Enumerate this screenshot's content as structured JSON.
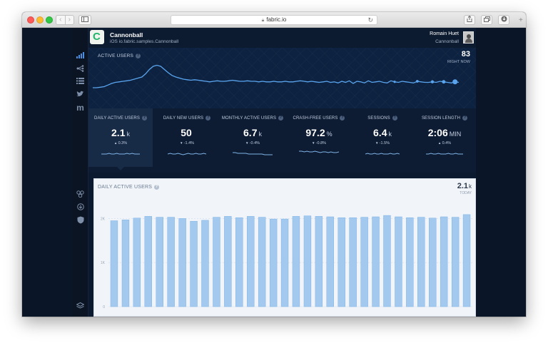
{
  "browser": {
    "url": "fabric.io",
    "nav_back": "‹",
    "nav_forward": "›"
  },
  "app": {
    "name": "Cannonball",
    "platform": "iOS",
    "bundle": "io.fabric.samples.Cannonball",
    "logo_letter": "C",
    "user_name": "Romain Huet",
    "user_org": "Cannonball"
  },
  "active_users": {
    "label": "ACTIVE USERS",
    "count": "83",
    "sublabel": "RIGHT NOW",
    "line_color": "#5aa4ee",
    "series": [
      40,
      40,
      41,
      42,
      45,
      48,
      50,
      51,
      52,
      53,
      54,
      56,
      58,
      60,
      66,
      74,
      80,
      82,
      80,
      74,
      68,
      63,
      60,
      58,
      56,
      55,
      54,
      55,
      54,
      53,
      52,
      51,
      52,
      53,
      52,
      52,
      53,
      54,
      53,
      52,
      52,
      53,
      52,
      52,
      51,
      52,
      51,
      51,
      52,
      51,
      51,
      52,
      51,
      51,
      52,
      53,
      52,
      51,
      52,
      51,
      50,
      51,
      52,
      50,
      51,
      49,
      52,
      50,
      53,
      48,
      52,
      51,
      49,
      53,
      50,
      51,
      52,
      50,
      49,
      53,
      51,
      50,
      52,
      51,
      50,
      49,
      52,
      51,
      50,
      50,
      51,
      50,
      52,
      51,
      50,
      49,
      51,
      50
    ],
    "dot_indices": [
      80,
      86,
      90,
      93,
      96
    ]
  },
  "stats": [
    {
      "label": "DAILY ACTIVE USERS",
      "value": "2.1",
      "unit": "k",
      "delta": "0.3%",
      "direction": "up",
      "spark": [
        3,
        3,
        3,
        4,
        3,
        3,
        4,
        3,
        3,
        3,
        4,
        3,
        4,
        3,
        3,
        3
      ]
    },
    {
      "label": "DAILY NEW USERS",
      "value": "50",
      "unit": "",
      "delta": "-1.4%",
      "direction": "down",
      "spark": [
        3,
        4,
        3,
        3,
        4,
        3,
        2,
        3,
        4,
        3,
        3,
        4,
        3,
        3,
        4,
        3
      ]
    },
    {
      "label": "MONTHLY ACTIVE USERS",
      "value": "6.7",
      "unit": "k",
      "delta": "-0.4%",
      "direction": "down",
      "spark": [
        5,
        5,
        4,
        4,
        4,
        4,
        3,
        3,
        3,
        3,
        3,
        3,
        2,
        2,
        2,
        2
      ]
    },
    {
      "label": "CRASH-FREE USERS",
      "value": "97.2",
      "unit": "%",
      "delta": "-0.8%",
      "direction": "down",
      "spark": [
        7,
        7,
        6,
        7,
        6,
        6,
        7,
        6,
        5,
        6,
        6,
        5,
        6,
        5,
        5,
        6
      ]
    },
    {
      "label": "SESSIONS",
      "value": "6.4",
      "unit": "k",
      "delta": "-1.5%",
      "direction": "down",
      "spark": [
        3,
        4,
        3,
        3,
        4,
        3,
        3,
        4,
        3,
        3,
        3,
        4,
        3,
        3,
        4,
        3
      ]
    },
    {
      "label": "SESSION LENGTH",
      "value": "2:06",
      "unit": "MIN",
      "delta": "0.4%",
      "direction": "up",
      "spark": [
        3,
        3,
        4,
        3,
        3,
        4,
        3,
        3,
        3,
        4,
        3,
        3,
        4,
        3,
        3,
        3
      ]
    }
  ],
  "panel": {
    "title": "DAILY ACTIVE USERS",
    "value": "2.1",
    "unit": "k",
    "period": "TODAY"
  },
  "chart_data": {
    "type": "bar",
    "title": "DAILY ACTIVE USERS",
    "xlabel": "",
    "ylabel": "",
    "ylim": [
      0,
      2250
    ],
    "yticks": [
      0,
      1000,
      2000
    ],
    "ytick_labels": [
      "0",
      "1K",
      "2K"
    ],
    "values": [
      1950,
      1970,
      2010,
      2050,
      2030,
      2030,
      2000,
      1940,
      1960,
      2030,
      2050,
      2020,
      2050,
      2030,
      1990,
      1990,
      2050,
      2060,
      2050,
      2040,
      2020,
      2020,
      2030,
      2040,
      2070,
      2040,
      2020,
      2030,
      2010,
      2040,
      2030,
      2090
    ],
    "bar_color": "#a3c9ee",
    "bar_edge_color": "#7fb3e6"
  }
}
